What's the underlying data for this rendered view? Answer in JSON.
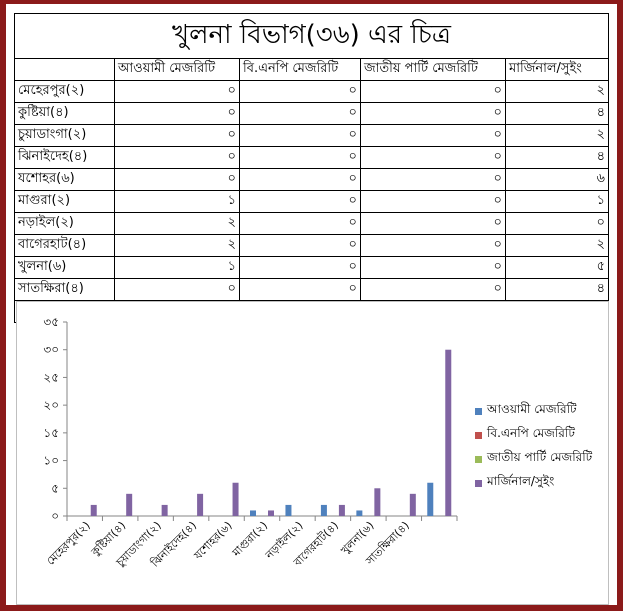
{
  "table": {
    "title": "খুলনা বিভাগ(৩৬) এর চিত্র",
    "headers": [
      "",
      "আওয়ামী মেজরিটি",
      "বি.এনপি মেজরিটি",
      "জাতীয় পার্টি মেজরিটি",
      "মার্জিনাল/সুইং"
    ],
    "rows": [
      {
        "label": "মেহেরপুর(২)",
        "cells": [
          "০",
          "০",
          "০",
          "২"
        ]
      },
      {
        "label": "কুষ্টিয়া(৪)",
        "cells": [
          "০",
          "০",
          "০",
          "৪"
        ]
      },
      {
        "label": "চুয়াডাংগা(২)",
        "cells": [
          "০",
          "০",
          "০",
          "২"
        ]
      },
      {
        "label": "ঝিনাইদেহ(৪)",
        "cells": [
          "০",
          "০",
          "০",
          "৪"
        ]
      },
      {
        "label": "যশোহর(৬)",
        "cells": [
          "০",
          "০",
          "০",
          "৬"
        ]
      },
      {
        "label": "মাগুরা(২)",
        "cells": [
          "১",
          "০",
          "০",
          "১"
        ]
      },
      {
        "label": "নড়াইল(২)",
        "cells": [
          "২",
          "০",
          "০",
          "০"
        ]
      },
      {
        "label": "বাগেরহাট(৪)",
        "cells": [
          "২",
          "০",
          "০",
          "২"
        ]
      },
      {
        "label": "খুলনা(৬)",
        "cells": [
          "১",
          "০",
          "০",
          "৫"
        ]
      },
      {
        "label": "সাতক্ষিরা(৪)",
        "cells": [
          "০",
          "০",
          "০",
          "৪"
        ]
      }
    ],
    "totals": [
      "৬",
      "০",
      "০",
      "৩০"
    ]
  },
  "chart_data": {
    "type": "bar",
    "categories": [
      "মেহেরপুর(২)",
      "কুষ্টিয়া(৪)",
      "চুয়াডাংগা(২)",
      "ঝিনাইদেহ(৪)",
      "যশোহর(৬)",
      "মাগুরা(২)",
      "নড়াইল(২)",
      "বাগেরহাট(৪)",
      "খুলনা(৬)",
      "সাতক্ষিরা(৪)"
    ],
    "series": [
      {
        "name": "আওয়ামী মেজরিটি",
        "color": "#4f81bd",
        "values": [
          0,
          0,
          0,
          0,
          0,
          1,
          2,
          2,
          1,
          0
        ]
      },
      {
        "name": "বি.এনপি মেজরিটি",
        "color": "#c0504d",
        "values": [
          0,
          0,
          0,
          0,
          0,
          0,
          0,
          0,
          0,
          0
        ]
      },
      {
        "name": "জাতীয় পার্টি মেজরিটি",
        "color": "#9bbb59",
        "values": [
          0,
          0,
          0,
          0,
          0,
          0,
          0,
          0,
          0,
          0
        ]
      },
      {
        "name": "মার্জিনাল/সুইং",
        "color": "#8064a2",
        "values": [
          2,
          4,
          2,
          4,
          6,
          1,
          0,
          2,
          5,
          4
        ]
      }
    ],
    "extra_category": {
      "values": [
        6,
        0,
        0,
        30
      ]
    },
    "ylim": [
      0,
      35
    ],
    "yticks": [
      0,
      5,
      10,
      15,
      20,
      25,
      30,
      35
    ],
    "ytick_labels": [
      "০",
      "৫",
      "১০",
      "১৫",
      "২০",
      "২৫",
      "৩০",
      "৩৫"
    ],
    "legend_position": "right",
    "grid": false
  }
}
